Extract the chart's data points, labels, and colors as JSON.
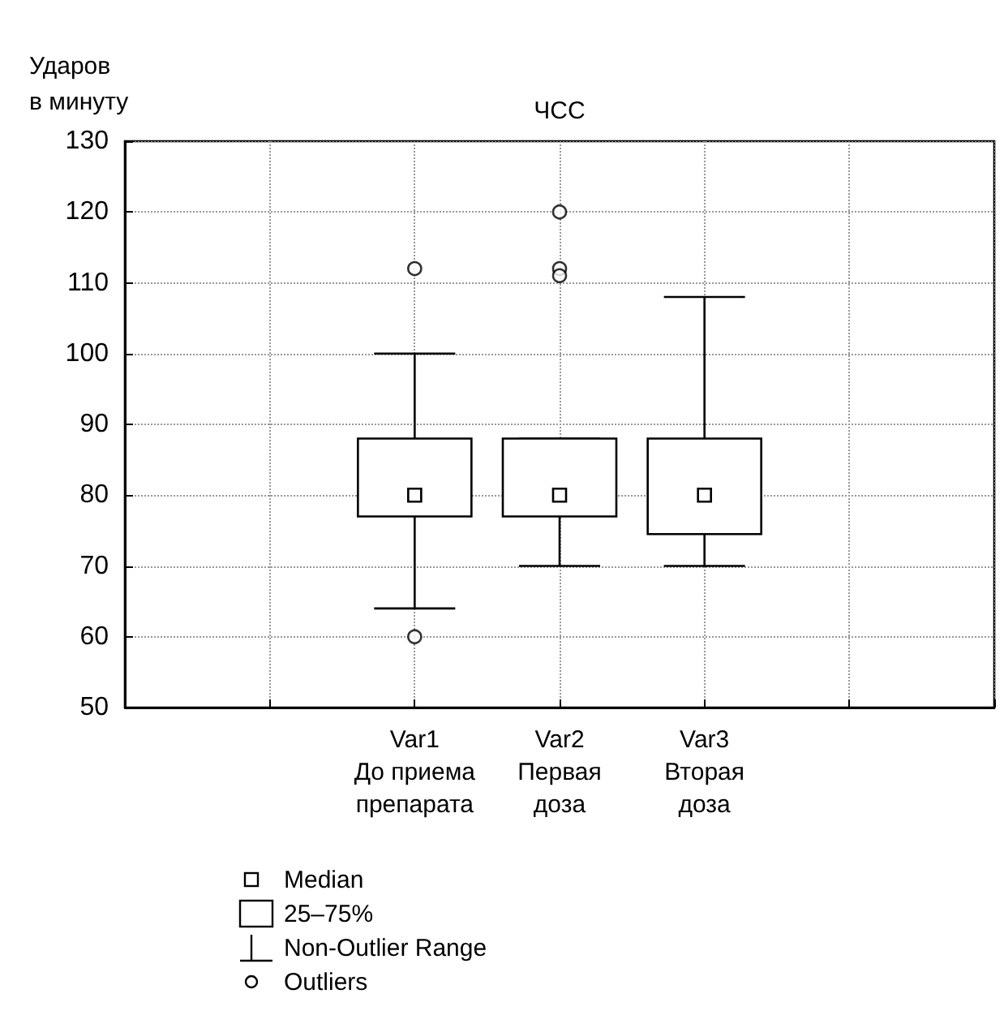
{
  "chart_data": {
    "type": "box",
    "title": "ЧСС",
    "ylabel": "Ударов\nв минуту",
    "categories": [
      null,
      null,
      "Var1\nДо приема\nпрепарата",
      "Var2\nПервая\nдоза",
      "Var3\nВторая\nдоза",
      null,
      null
    ],
    "series": [
      {
        "name": "Non-Outlier Range",
        "color": "#000000",
        "boxes": [
          null,
          null,
          {
            "low": 64,
            "q1": 77,
            "median": 80,
            "q3": 88,
            "high": 100,
            "outliers": [
              112,
              60
            ]
          },
          {
            "low": 70,
            "q1": 77,
            "median": 80,
            "q3": 88,
            "high": 88,
            "outliers": [
              120,
              112,
              111
            ]
          },
          {
            "low": 70,
            "q1": 74.5,
            "median": 80,
            "q3": 88,
            "high": 108
          },
          null,
          null
        ]
      }
    ],
    "ylim": [
      50,
      130
    ],
    "yticks": [
      50,
      60,
      70,
      80,
      90,
      100,
      110,
      120,
      130
    ],
    "grid": true,
    "legend": "bottom left",
    "annotations": [
      "Median",
      "25–75%",
      "Outliers"
    ]
  }
}
